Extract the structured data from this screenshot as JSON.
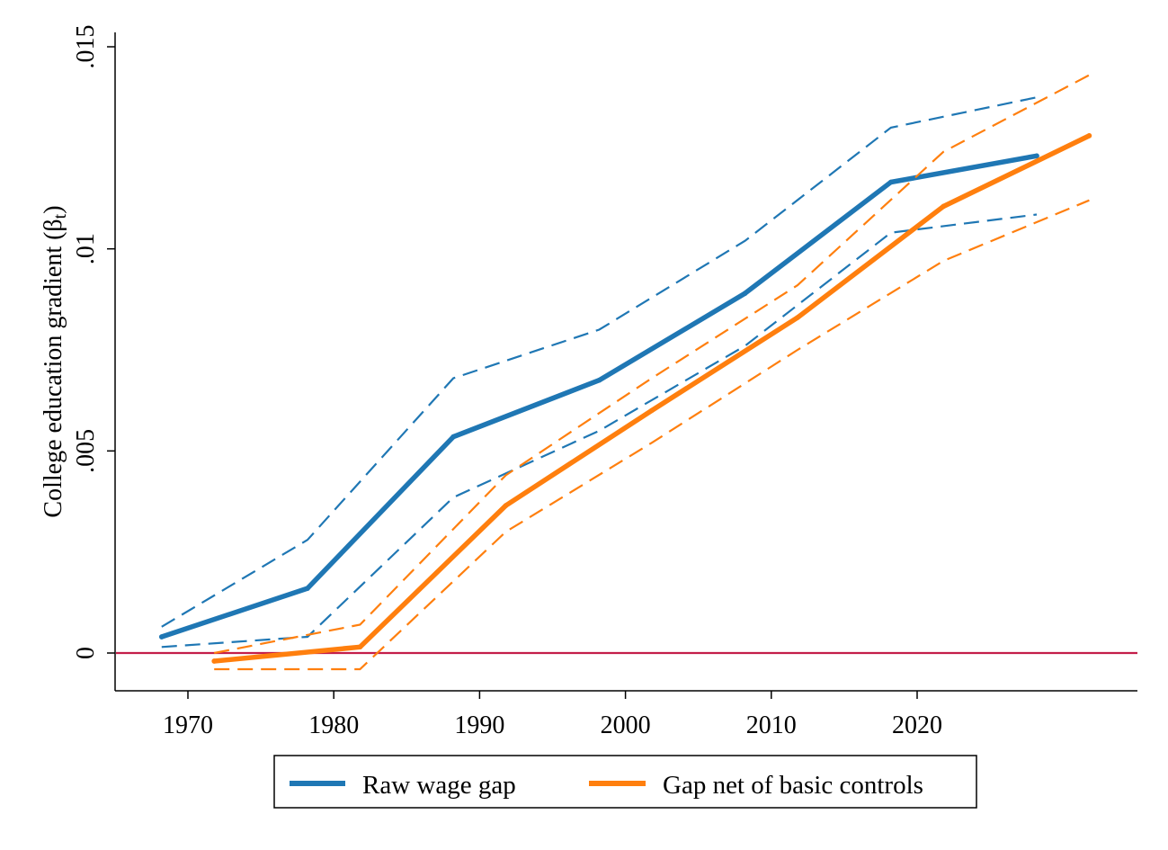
{
  "chart_data": {
    "type": "line",
    "title": "",
    "xlabel": "",
    "ylabel": "College education gradient (βt)",
    "ylabel_main": "College education gradient (β",
    "ylabel_sub": "t",
    "ylabel_close": ")",
    "xlim": [
      1965,
      2035
    ],
    "ylim": [
      -0.0009,
      0.0154
    ],
    "x_ticks": [
      1970,
      1980,
      1990,
      2000,
      2010,
      2020
    ],
    "x_tick_labels": [
      "1970",
      "1980",
      "1990",
      "2000",
      "2010",
      "2020"
    ],
    "y_ticks": [
      0,
      0.005,
      0.01,
      0.015
    ],
    "y_tick_labels": [
      "0",
      ".005",
      ".01",
      ".015"
    ],
    "reference_line": {
      "y": 0,
      "color": "#c41e4a"
    },
    "grid": false,
    "legend_position": "bottom",
    "series": [
      {
        "name": "Raw wage gap",
        "color": "#1f77b4",
        "x": [
          1968.2,
          1978.2,
          1988.2,
          1998.2,
          2008.2,
          2018.2,
          2028.2
        ],
        "values": [
          0.0004,
          0.0016,
          0.00535,
          0.00675,
          0.0089,
          0.01165,
          0.0123
        ],
        "ci_lower": [
          0.00015,
          0.0004,
          0.00385,
          0.0055,
          0.0076,
          0.0104,
          0.01085
        ],
        "ci_upper": [
          0.00065,
          0.0028,
          0.0068,
          0.008,
          0.0102,
          0.013,
          0.01375
        ]
      },
      {
        "name": "Gap net of basic controls",
        "color": "#ff7f0e",
        "x": [
          1971.8,
          1981.8,
          1991.8,
          2001.8,
          2011.8,
          2021.8,
          2031.8
        ],
        "values": [
          -0.0002,
          0.00015,
          0.00365,
          0.006,
          0.0083,
          0.01105,
          0.0128
        ],
        "ci_lower": [
          -0.0004,
          -0.0004,
          0.003,
          0.0052,
          0.0075,
          0.0097,
          0.0112
        ],
        "ci_upper": [
          0.0,
          0.0007,
          0.0044,
          0.0068,
          0.0091,
          0.0124,
          0.0143
        ]
      }
    ]
  }
}
